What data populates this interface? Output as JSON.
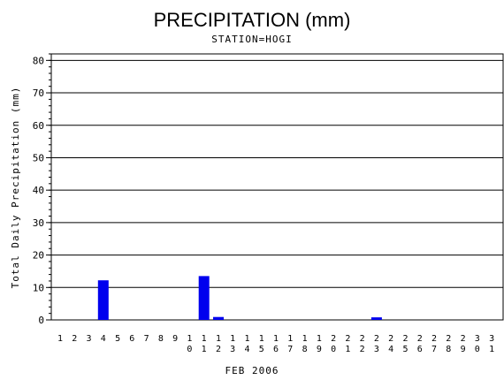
{
  "chart_data": {
    "type": "bar",
    "title": "PRECIPITATION (mm)",
    "subtitle": "STATION=HOGI",
    "xlabel": "FEB 2006",
    "ylabel": "Total Daily Precipitation (mm)",
    "ylim": [
      0,
      82
    ],
    "yticks": [
      "0",
      "10",
      "20",
      "30",
      "40",
      "50",
      "60",
      "70",
      "80"
    ],
    "grid": true,
    "bar_color": "#0000ee",
    "categories": [
      "1",
      "2",
      "3",
      "4",
      "5",
      "6",
      "7",
      "8",
      "9",
      "10",
      "11",
      "12",
      "13",
      "14",
      "15",
      "16",
      "17",
      "18",
      "19",
      "20",
      "21",
      "22",
      "23",
      "24",
      "25",
      "26",
      "27",
      "28",
      "29",
      "30",
      "31"
    ],
    "values": [
      0,
      0,
      0,
      12.2,
      0,
      0,
      0,
      0,
      0,
      0,
      13.5,
      0.9,
      0,
      0,
      0,
      0,
      0,
      0,
      0,
      0,
      0,
      0,
      0.8,
      0,
      0,
      0,
      0,
      0,
      0,
      0,
      0
    ]
  }
}
